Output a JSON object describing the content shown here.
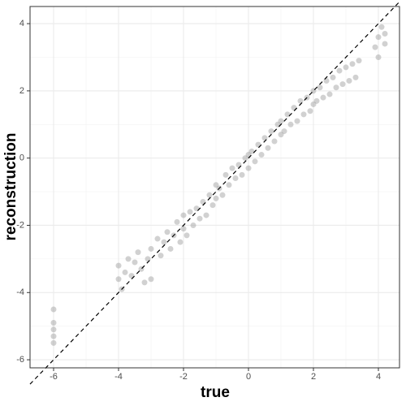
{
  "chart_data": {
    "type": "scatter",
    "x_label": "true",
    "y_label": "reconstruction",
    "xlim": [
      -6.725,
      4.65
    ],
    "ylim": [
      -6.24,
      4.51
    ],
    "xticks": [
      -6,
      -4,
      -2,
      0,
      2,
      4
    ],
    "yticks": [
      -6,
      -4,
      -2,
      0,
      2,
      4
    ],
    "grid": true,
    "color": "#999999",
    "series": [
      {
        "color": "#999999",
        "x": [
          -6.0,
          -6.0,
          -6.0,
          -6.0,
          -6.0,
          -4.0,
          -4.0,
          -3.9,
          -3.8,
          -3.7,
          -3.6,
          -3.5,
          -3.4,
          -3.3,
          -3.2,
          -3.1,
          -3.0,
          -3.0,
          -2.8,
          -2.7,
          -2.6,
          -2.5,
          -2.4,
          -2.3,
          -2.2,
          -2.1,
          -2.0,
          -2.0,
          -1.9,
          -1.8,
          -1.7,
          -1.6,
          -1.5,
          -1.4,
          -1.3,
          -1.2,
          -1.1,
          -1.0,
          -1.0,
          -0.9,
          -0.8,
          -0.7,
          -0.6,
          -0.5,
          -0.4,
          -0.3,
          -0.2,
          -0.1,
          0.0,
          0.0,
          0.1,
          0.2,
          0.3,
          0.4,
          0.5,
          0.6,
          0.7,
          0.8,
          0.9,
          1.0,
          1.0,
          1.1,
          1.2,
          1.3,
          1.4,
          1.5,
          1.6,
          1.7,
          1.8,
          1.9,
          2.0,
          2.0,
          2.1,
          2.2,
          2.3,
          2.4,
          2.5,
          2.6,
          2.7,
          2.8,
          2.9,
          3.0,
          3.1,
          3.2,
          3.3,
          3.4,
          3.9,
          4.0,
          4.1,
          4.2,
          4.2,
          4.0
        ],
        "values": [
          -4.9,
          -5.1,
          -5.3,
          -5.5,
          -4.5,
          -3.2,
          -3.6,
          -3.9,
          -3.4,
          -3.0,
          -3.5,
          -3.1,
          -2.8,
          -3.3,
          -3.7,
          -3.0,
          -2.7,
          -3.6,
          -2.4,
          -2.9,
          -2.5,
          -2.2,
          -2.7,
          -2.3,
          -1.9,
          -2.5,
          -2.1,
          -1.7,
          -2.3,
          -1.6,
          -2.0,
          -1.5,
          -1.8,
          -1.3,
          -1.7,
          -1.1,
          -1.4,
          -0.8,
          -1.2,
          -0.9,
          -1.1,
          -0.5,
          -0.8,
          -0.3,
          -0.6,
          -0.2,
          -0.5,
          0.0,
          -0.3,
          0.1,
          0.2,
          -0.1,
          0.4,
          0.1,
          0.6,
          0.3,
          0.8,
          0.5,
          1.0,
          0.7,
          1.1,
          0.8,
          1.3,
          1.0,
          1.5,
          1.1,
          1.7,
          1.3,
          1.8,
          1.4,
          2.0,
          1.6,
          1.7,
          2.1,
          1.8,
          2.3,
          1.9,
          2.4,
          2.1,
          2.6,
          2.2,
          2.7,
          2.3,
          2.8,
          2.4,
          2.9,
          3.3,
          3.6,
          3.9,
          3.4,
          3.7,
          3.0
        ]
      }
    ]
  }
}
